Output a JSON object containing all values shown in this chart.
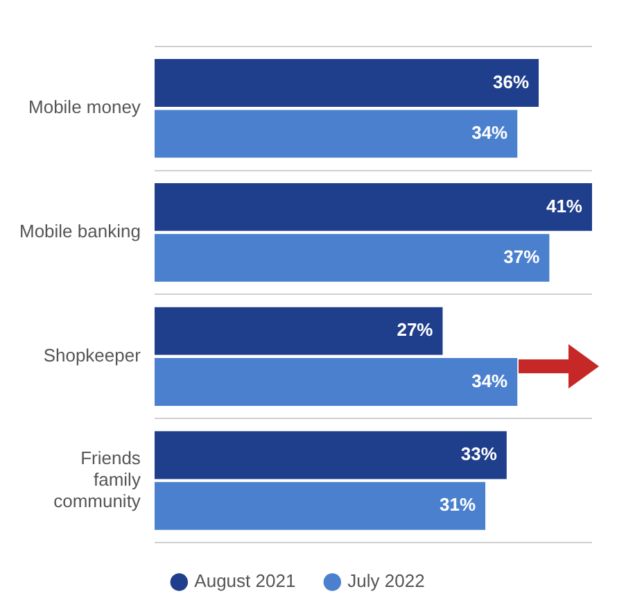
{
  "chart_data": {
    "type": "bar",
    "orientation": "horizontal",
    "categories": [
      "Mobile money",
      "Mobile banking",
      "Shopkeeper",
      "Friends family community"
    ],
    "series": [
      {
        "name": "August 2021",
        "color": "#1f3e8c",
        "values": [
          36,
          41,
          27,
          33
        ],
        "value_labels": [
          "36%",
          "41%",
          "27%",
          "33%"
        ]
      },
      {
        "name": "July 2022",
        "color": "#4b80cf",
        "values": [
          34,
          37,
          34,
          31
        ],
        "value_labels": [
          "34%",
          "37%",
          "34%",
          "31%"
        ]
      }
    ],
    "grid": "y",
    "legend": "bottom"
  }
}
